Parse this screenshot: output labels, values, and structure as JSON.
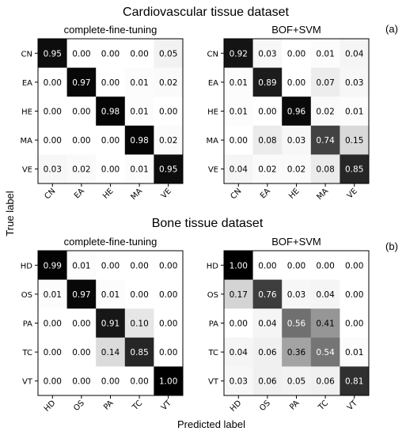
{
  "titles": {
    "cardio": "Cardiovascular tissue dataset",
    "bone": "Bone tissue dataset",
    "panel_a": "(a)",
    "panel_b": "(b)",
    "ylabel": "True label",
    "xlabel": "Predicted label"
  },
  "chart_data": [
    {
      "type": "heatmap",
      "title": "complete-fine-tuning",
      "group": "cardio",
      "row_labels": [
        "CN",
        "EA",
        "HE",
        "MA",
        "VE"
      ],
      "col_labels": [
        "CN",
        "EA",
        "HE",
        "MA",
        "VE"
      ],
      "values": [
        [
          0.95,
          0.0,
          0.0,
          0.0,
          0.05
        ],
        [
          0.0,
          0.97,
          0.0,
          0.01,
          0.02
        ],
        [
          0.0,
          0.0,
          0.98,
          0.01,
          0.0
        ],
        [
          0.0,
          0.0,
          0.0,
          0.98,
          0.02
        ],
        [
          0.03,
          0.02,
          0.0,
          0.01,
          0.95
        ]
      ],
      "colormap": "white-to-black",
      "value_range": [
        0,
        1
      ]
    },
    {
      "type": "heatmap",
      "title": "BOF+SVM",
      "group": "cardio",
      "row_labels": [
        "CN",
        "EA",
        "HE",
        "MA",
        "VE"
      ],
      "col_labels": [
        "CN",
        "EA",
        "HE",
        "MA",
        "VE"
      ],
      "values": [
        [
          0.92,
          0.03,
          0.0,
          0.01,
          0.04
        ],
        [
          0.01,
          0.89,
          0.0,
          0.07,
          0.03
        ],
        [
          0.01,
          0.0,
          0.96,
          0.02,
          0.01
        ],
        [
          0.0,
          0.08,
          0.03,
          0.74,
          0.15
        ],
        [
          0.04,
          0.02,
          0.02,
          0.08,
          0.85
        ]
      ],
      "colormap": "white-to-black",
      "value_range": [
        0,
        1
      ]
    },
    {
      "type": "heatmap",
      "title": "complete-fine-tuning",
      "group": "bone",
      "row_labels": [
        "HD",
        "OS",
        "PA",
        "TC",
        "VT"
      ],
      "col_labels": [
        "HD",
        "OS",
        "PA",
        "TC",
        "VT"
      ],
      "values": [
        [
          0.99,
          0.01,
          0.0,
          0.0,
          0.0
        ],
        [
          0.01,
          0.97,
          0.01,
          0.0,
          0.0
        ],
        [
          0.0,
          0.0,
          0.91,
          0.1,
          0.0
        ],
        [
          0.0,
          0.0,
          0.14,
          0.85,
          0.0
        ],
        [
          0.0,
          0.0,
          0.0,
          0.0,
          1.0
        ]
      ],
      "colormap": "white-to-black",
      "value_range": [
        0,
        1
      ]
    },
    {
      "type": "heatmap",
      "title": "BOF+SVM",
      "group": "bone",
      "row_labels": [
        "HD",
        "OS",
        "PA",
        "TC",
        "VT"
      ],
      "col_labels": [
        "HD",
        "OS",
        "PA",
        "TC",
        "VT"
      ],
      "values": [
        [
          1.0,
          0.0,
          0.0,
          0.0,
          0.0
        ],
        [
          0.17,
          0.76,
          0.03,
          0.04,
          0.0
        ],
        [
          0.0,
          0.04,
          0.56,
          0.41,
          0.0
        ],
        [
          0.04,
          0.06,
          0.36,
          0.54,
          0.01
        ],
        [
          0.03,
          0.06,
          0.05,
          0.06,
          0.81
        ]
      ],
      "colormap": "white-to-black",
      "value_range": [
        0,
        1
      ]
    }
  ]
}
